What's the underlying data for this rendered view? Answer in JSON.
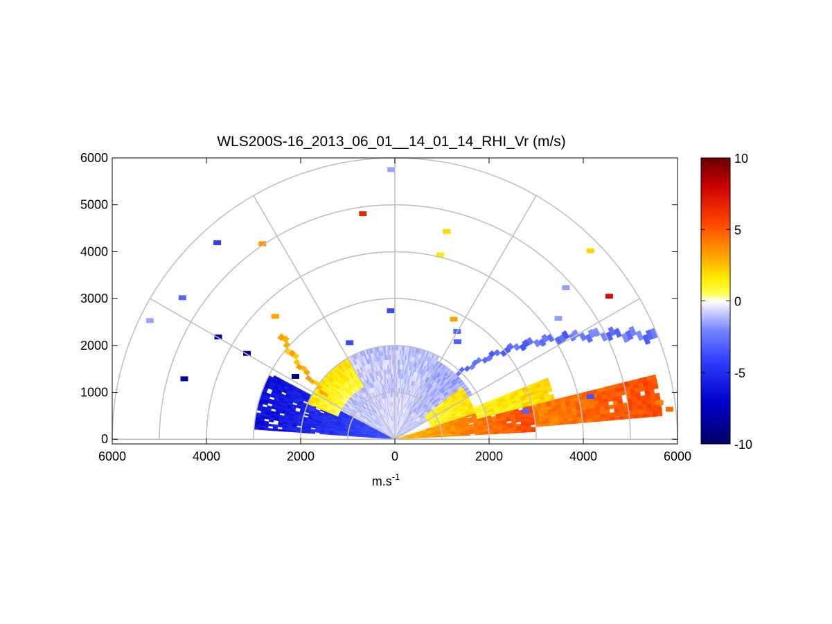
{
  "chart_data": {
    "type": "heatmap",
    "subtype": "polar RHI (half-disc) scan",
    "title": "WLS200S-16_2013_06_01__14_01_14_RHI_Vr (m/s)",
    "xlabel": "m.s",
    "xlabel_superscript": "-1",
    "x_ticks": [
      "6000",
      "4000",
      "2000",
      "0",
      "2000",
      "4000",
      "6000"
    ],
    "x_tick_values": [
      -6000,
      -4000,
      -2000,
      0,
      2000,
      4000,
      6000
    ],
    "y_ticks": [
      "0",
      "1000",
      "2000",
      "3000",
      "4000",
      "5000",
      "6000"
    ],
    "y_tick_values": [
      0,
      1000,
      2000,
      3000,
      4000,
      5000,
      6000
    ],
    "xlim": [
      -6000,
      6000
    ],
    "ylim": [
      -100,
      6000
    ],
    "range_rings": [
      1000,
      2000,
      3000,
      4000,
      5000,
      6000
    ],
    "spokes_deg": [
      0,
      30,
      60,
      90,
      120,
      150,
      180
    ],
    "grid": true,
    "colormap": {
      "min": -10,
      "max": 10,
      "ticks": [
        "10",
        "5",
        "0",
        "-5",
        "-10"
      ],
      "tick_values": [
        10,
        5,
        0,
        -5,
        -10
      ],
      "stops": [
        {
          "v": -10,
          "c": "#000066"
        },
        {
          "v": -7,
          "c": "#0000cc"
        },
        {
          "v": -4,
          "c": "#3344ff"
        },
        {
          "v": -2,
          "c": "#7788ff"
        },
        {
          "v": -0.8,
          "c": "#ccccff"
        },
        {
          "v": 0,
          "c": "#ffffff"
        },
        {
          "v": 0.4,
          "c": "#ffff66"
        },
        {
          "v": 1.5,
          "c": "#ffee00"
        },
        {
          "v": 3,
          "c": "#ffaa00"
        },
        {
          "v": 5.5,
          "c": "#ff4400"
        },
        {
          "v": 8,
          "c": "#cc0000"
        },
        {
          "v": 10,
          "c": "#660000"
        }
      ]
    },
    "sectors": [
      {
        "name": "near-left-negative",
        "az1": 152,
        "az2": 176,
        "r1": 0,
        "r2": 3000,
        "v1": -3.5,
        "v2": -6.5
      },
      {
        "name": "near-left-faint",
        "az1": 120,
        "az2": 152,
        "r1": 0,
        "r2": 1800,
        "v1": -0.6,
        "v2": -1.2
      },
      {
        "name": "near-mid-positive",
        "az1": 120,
        "az2": 158,
        "r1": 1300,
        "r2": 2000,
        "v1": 0.8,
        "v2": 1.8
      },
      {
        "name": "near-center-faint",
        "az1": 62,
        "az2": 120,
        "r1": 0,
        "r2": 2000,
        "v1": -0.5,
        "v2": -1.0
      },
      {
        "name": "near-right-mixed",
        "az1": 30,
        "az2": 62,
        "r1": 0,
        "r2": 1900,
        "v1": -0.7,
        "v2": -1.4
      },
      {
        "name": "near-right-yellow",
        "az1": 18,
        "az2": 38,
        "r1": 800,
        "r2": 1800,
        "v1": 1.0,
        "v2": 1.8
      },
      {
        "name": "right-positive-core",
        "az1": 3,
        "az2": 18,
        "r1": 0,
        "r2": 3000,
        "v1": 2.5,
        "v2": 5.5
      },
      {
        "name": "right-positive-far",
        "az1": 5,
        "az2": 14,
        "r1": 3000,
        "r2": 5700,
        "v1": 4.0,
        "v2": 5.5
      },
      {
        "name": "right-yellow-band",
        "az1": 14,
        "az2": 22,
        "r1": 1800,
        "r2": 3500,
        "v1": 1.2,
        "v2": 2.2
      }
    ],
    "bands": [
      {
        "name": "left-orange-band",
        "az_start": 147,
        "az_end": 137,
        "r1": 1700,
        "r2": 3250,
        "width": 2.2,
        "v": 2.8
      },
      {
        "name": "right-blue-band-upper",
        "az_start": 46,
        "az_end": 30,
        "r1": 1900,
        "r2": 4300,
        "width": 2.2,
        "v": -2.8
      },
      {
        "name": "right-blue-band-far",
        "az_start": 30,
        "az_end": 21,
        "r1": 4300,
        "r2": 6000,
        "width": 2.0,
        "v": -2.6
      }
    ],
    "points": [
      {
        "x": -80,
        "y": 5750,
        "v": -1.5
      },
      {
        "x": -680,
        "y": 4810,
        "v": 6.5
      },
      {
        "x": 1100,
        "y": 4430,
        "v": 2.0
      },
      {
        "x": 960,
        "y": 3930,
        "v": 1.6
      },
      {
        "x": -3770,
        "y": 4190,
        "v": -4.2
      },
      {
        "x": -2810,
        "y": 4170,
        "v": 3.5
      },
      {
        "x": -4510,
        "y": 3020,
        "v": -3.0
      },
      {
        "x": -5200,
        "y": 2530,
        "v": -1.5
      },
      {
        "x": -2540,
        "y": 2620,
        "v": 3.0
      },
      {
        "x": -3750,
        "y": 2180,
        "v": -8.0
      },
      {
        "x": -3140,
        "y": 1830,
        "v": -8.0
      },
      {
        "x": -4470,
        "y": 1290,
        "v": -8.0
      },
      {
        "x": -2110,
        "y": 1340,
        "v": -9.0
      },
      {
        "x": -1760,
        "y": 650,
        "v": -4.5
      },
      {
        "x": -90,
        "y": 2740,
        "v": -3.8
      },
      {
        "x": -960,
        "y": 2060,
        "v": -3.8
      },
      {
        "x": 1250,
        "y": 2560,
        "v": 3.2
      },
      {
        "x": 1320,
        "y": 2300,
        "v": -3.0
      },
      {
        "x": 1330,
        "y": 2080,
        "v": -3.2
      },
      {
        "x": 4150,
        "y": 4020,
        "v": 2.0
      },
      {
        "x": 3630,
        "y": 3230,
        "v": -1.6
      },
      {
        "x": 3470,
        "y": 2580,
        "v": -1.6
      },
      {
        "x": 4550,
        "y": 3050,
        "v": 7.5
      },
      {
        "x": 4150,
        "y": 910,
        "v": -3.5
      },
      {
        "x": 2780,
        "y": 600,
        "v": -3.0
      },
      {
        "x": 5620,
        "y": 780,
        "v": 4.0
      },
      {
        "x": 5830,
        "y": 640,
        "v": 4.5
      }
    ]
  }
}
